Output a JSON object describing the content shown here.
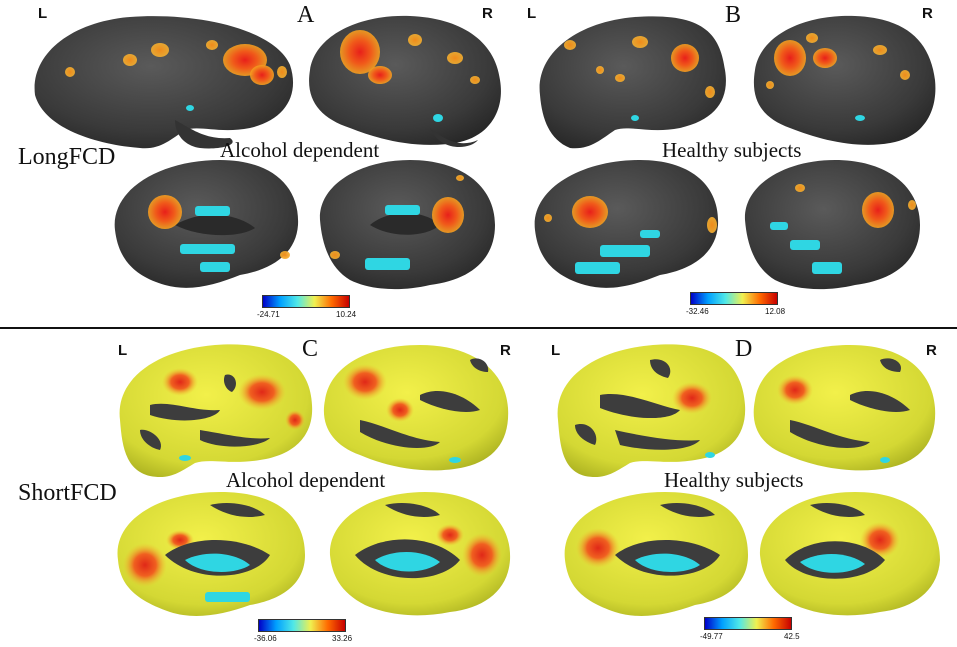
{
  "rows": [
    {
      "label": "LongFCD"
    },
    {
      "label": "ShortFCD"
    }
  ],
  "panels": [
    {
      "letter": "A",
      "group": "Alcohol dependent",
      "left": "L",
      "right": "R",
      "colorbar": {
        "min": "-24.71",
        "max": "10.24"
      }
    },
    {
      "letter": "B",
      "group": "Healthy subjects",
      "left": "L",
      "right": "R",
      "colorbar": {
        "min": "-32.46",
        "max": "12.08"
      }
    },
    {
      "letter": "C",
      "group": "Alcohol dependent",
      "left": "L",
      "right": "R",
      "colorbar": {
        "min": "-36.06",
        "max": "33.26"
      }
    },
    {
      "letter": "D",
      "group": "Healthy subjects",
      "left": "L",
      "right": "R",
      "colorbar": {
        "min": "-49.77",
        "max": "42.5"
      }
    }
  ],
  "colors": {
    "cortex": "#3d3d3d",
    "cortex_dark": "#2a2a2a",
    "positive_strong": "#e8321c",
    "positive_mid": "#f08a1a",
    "positive_weak": "#e6e82a",
    "negative": "#2fd6e3",
    "colorbar_gradient": [
      "#0000c8",
      "#00a0ff",
      "#50e8e8",
      "#f0f050",
      "#ff6a00",
      "#c80000"
    ]
  }
}
